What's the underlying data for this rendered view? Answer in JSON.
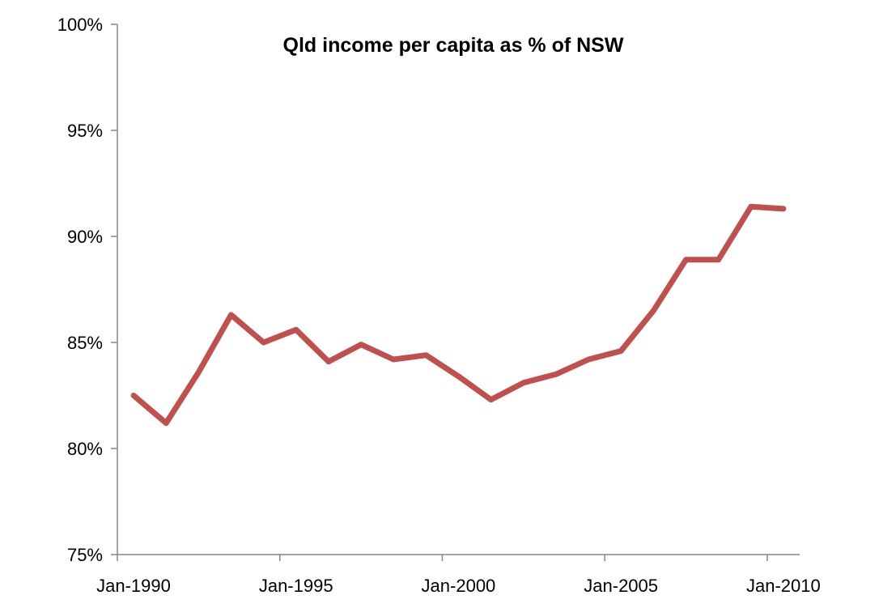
{
  "chart_data": {
    "type": "line",
    "title": "Qld income per capita as % of NSW",
    "xlabel": "",
    "ylabel": "",
    "ylim": [
      75,
      100
    ],
    "y_tick_values": [
      75,
      80,
      85,
      90,
      95,
      100
    ],
    "y_tick_labels": [
      "75%",
      "80%",
      "85%",
      "90%",
      "95%",
      "100%"
    ],
    "x_tick_labels": [
      "Jan-1990",
      "Jan-1995",
      "Jan-2000",
      "Jan-2005",
      "Jan-2010"
    ],
    "x_tick_years": [
      1990,
      1995,
      2000,
      2005,
      2010
    ],
    "xlim_years": [
      1990,
      2011
    ],
    "grid": false,
    "legend": "none",
    "line_color": "#c0504d",
    "series": [
      {
        "x": [
          1990.5,
          1991.5,
          1992.5,
          1993.5,
          1994.5,
          1995.5,
          1996.5,
          1997.5,
          1998.5,
          1999.5,
          2000.5,
          2001.5,
          2002.5,
          2003.5,
          2004.5,
          2005.5,
          2006.5,
          2007.5,
          2008.5,
          2009.5,
          2010.5
        ],
        "values": [
          82.5,
          81.2,
          83.6,
          86.3,
          85.0,
          85.6,
          84.1,
          84.9,
          84.2,
          84.4,
          83.4,
          82.3,
          83.1,
          83.5,
          84.2,
          84.6,
          86.5,
          88.9,
          88.9,
          91.4,
          91.3
        ]
      }
    ]
  }
}
